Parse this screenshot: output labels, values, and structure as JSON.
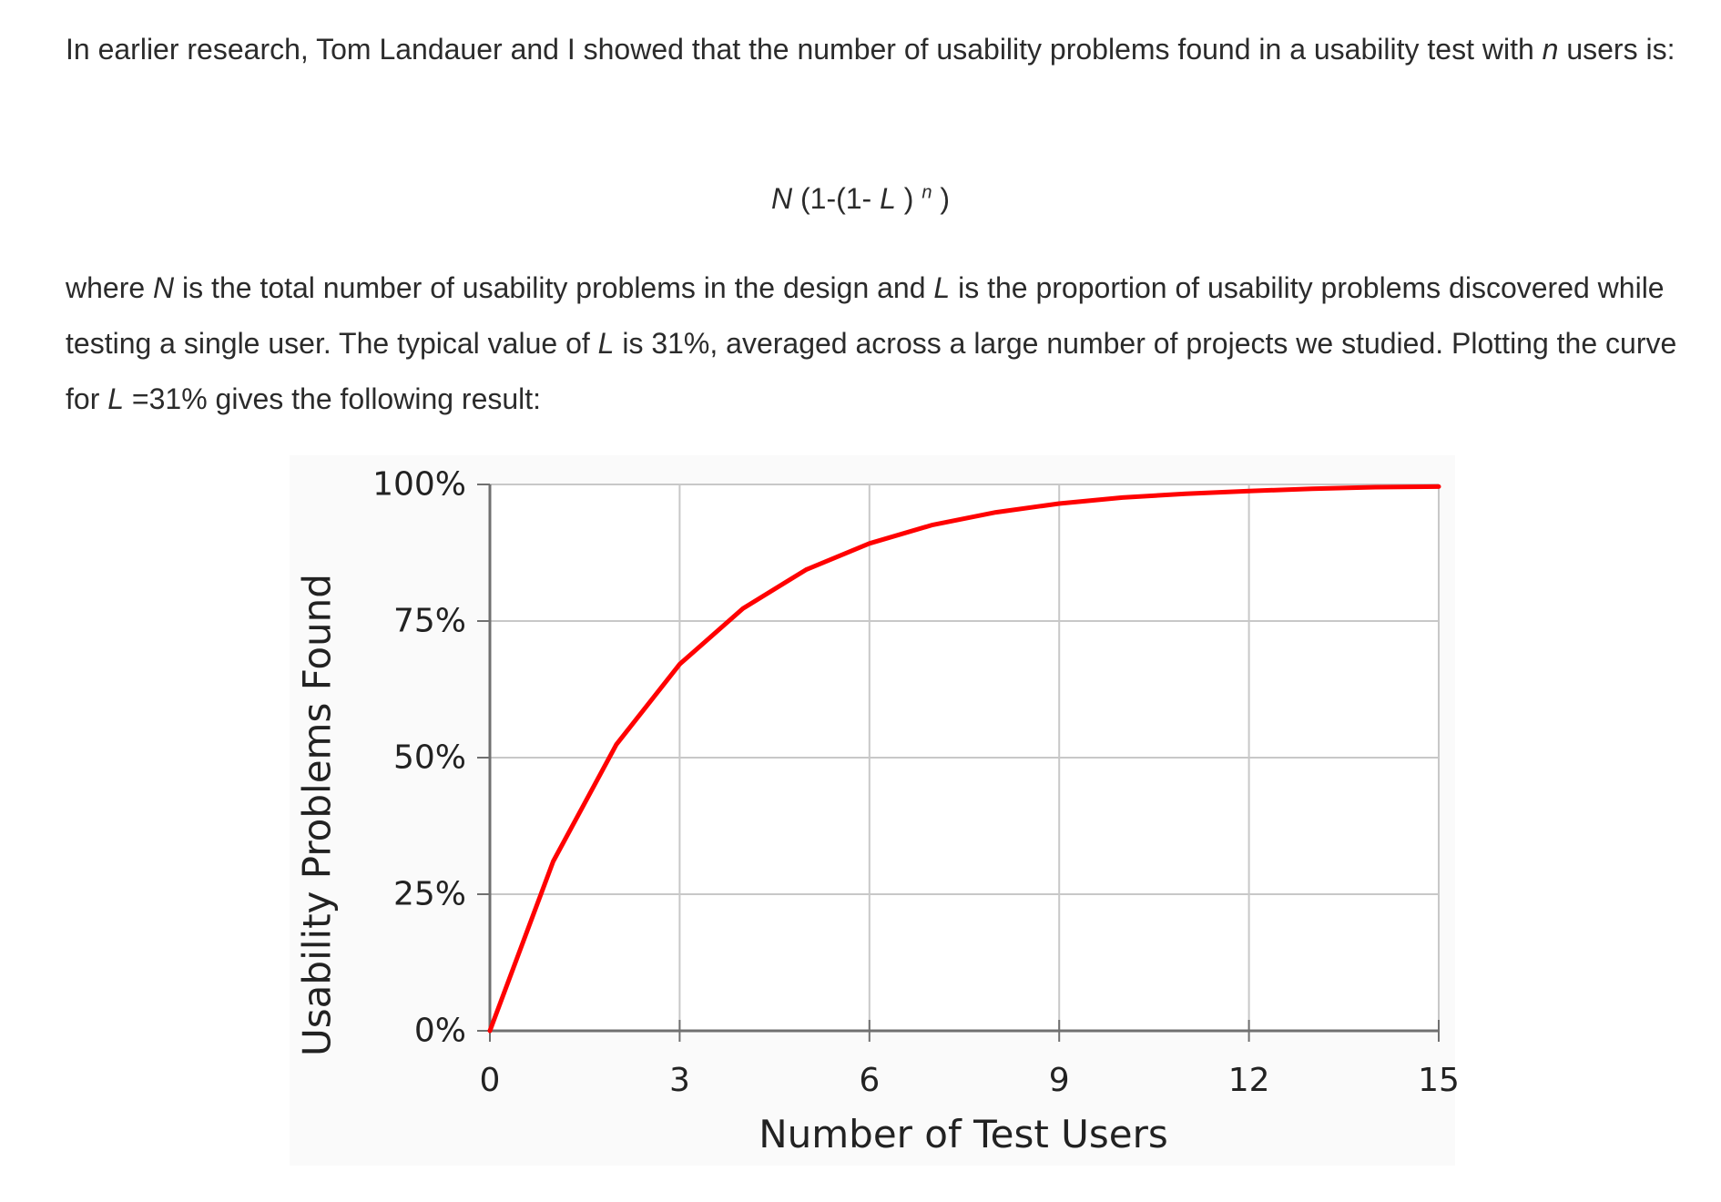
{
  "paragraph1": {
    "part1": "In earlier research, Tom Landauer and I showed that the number of usability problems found in a usability test with ",
    "var_n": "n",
    "part2": " users is:"
  },
  "formula": {
    "N": "N",
    "a": " (1-(1- ",
    "L": "L",
    "b": " ) ",
    "n": "n",
    "c": " )"
  },
  "paragraph2": {
    "part1": "where ",
    "var_N": "N",
    "part2": " is the total number of usability problems in the design and ",
    "var_L1": "L",
    "part3": " is the proportion of usability problems discovered while testing a single user. The typical value of ",
    "var_L2": "L",
    "part4": " is 31%, averaged across a large number of projects we studied. Plotting the curve for ",
    "var_L3": "L",
    "part5": " =31% gives the following result:"
  },
  "chart_data": {
    "type": "line",
    "xlabel": "Number of Test Users",
    "ylabel": "Usability Problems Found",
    "xlim": [
      0,
      15
    ],
    "ylim": [
      0,
      100
    ],
    "x_ticks": [
      0,
      3,
      6,
      9,
      12,
      15
    ],
    "y_ticks": [
      0,
      25,
      50,
      75,
      100
    ],
    "y_tick_labels": [
      "0%",
      "25%",
      "50%",
      "75%",
      "100%"
    ],
    "grid": true,
    "legend": "none",
    "series": [
      {
        "color": "#ff0000",
        "x": [
          0,
          1,
          2,
          3,
          4,
          5,
          6,
          7,
          8,
          9,
          10,
          11,
          12,
          13,
          14,
          15
        ],
        "y": [
          0,
          31,
          52.4,
          67.1,
          77.3,
          84.4,
          89.2,
          92.6,
          94.9,
          96.5,
          97.6,
          98.3,
          98.8,
          99.2,
          99.5,
          99.6
        ]
      }
    ]
  }
}
